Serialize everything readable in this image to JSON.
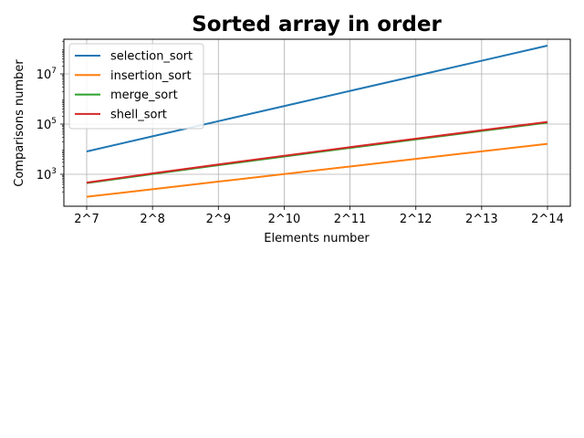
{
  "chart_data": {
    "type": "line",
    "title": "Sorted array in order",
    "xlabel": "Elements number",
    "ylabel": "Comparisons number",
    "yscale": "log",
    "grid": true,
    "legend_position": "top-left",
    "x": [
      128,
      256,
      512,
      1024,
      2048,
      4096,
      8192,
      16384
    ],
    "x_tick_labels": [
      "2^7",
      "2^8",
      "2^9",
      "2^10",
      "2^11",
      "2^12",
      "2^13",
      "2^14"
    ],
    "y_ticks": [
      1000,
      100000,
      10000000
    ],
    "y_tick_labels": [
      {
        "base": "10",
        "exp": "3"
      },
      {
        "base": "10",
        "exp": "5"
      },
      {
        "base": "10",
        "exp": "7"
      }
    ],
    "series": [
      {
        "name": "selection_sort",
        "color": "#1f77b4",
        "values": [
          8128,
          32640,
          130816,
          523776,
          2096128,
          8386560,
          33550336,
          134209536
        ]
      },
      {
        "name": "insertion_sort",
        "color": "#ff7f0e",
        "values": [
          127,
          255,
          511,
          1023,
          2047,
          4095,
          8191,
          16383
        ]
      },
      {
        "name": "merge_sort",
        "color": "#2ca02c",
        "values": [
          448,
          1024,
          2304,
          5120,
          11264,
          24576,
          53248,
          114688
        ]
      },
      {
        "name": "shell_sort",
        "color": "#d62728",
        "values": [
          466,
          1086,
          2462,
          5482,
          12070,
          26242,
          56706,
          121738
        ]
      }
    ]
  }
}
